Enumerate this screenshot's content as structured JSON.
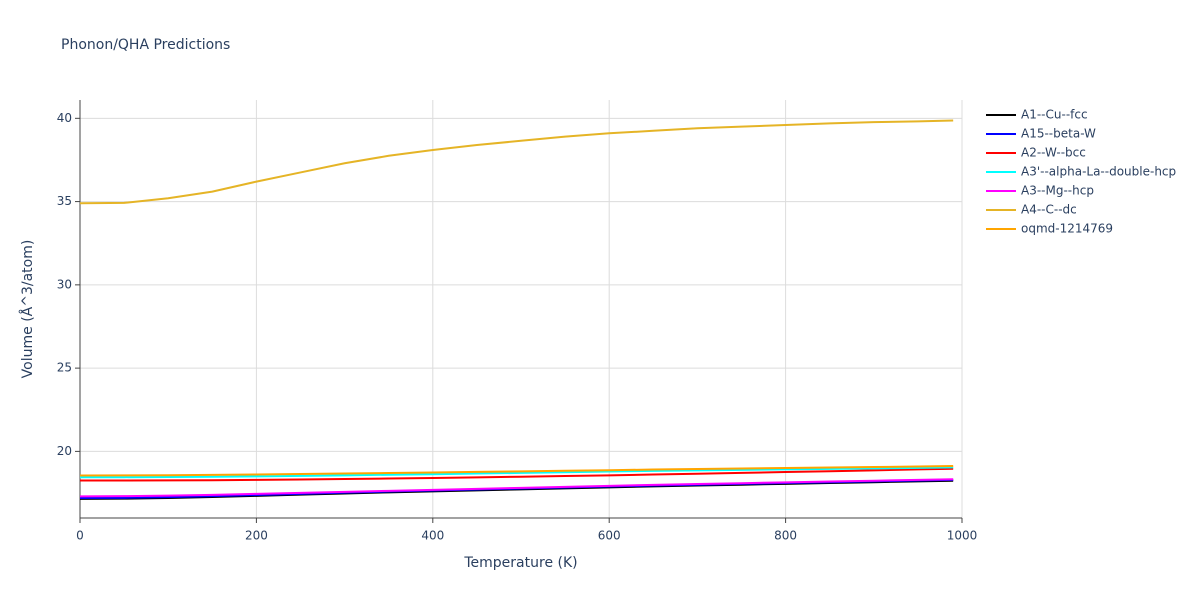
{
  "chart_data": {
    "type": "line",
    "title": "Phonon/QHA Predictions",
    "x_label": "Temperature (K)",
    "y_label": "Volume (Å^3/atom)",
    "x": [
      0,
      50,
      100,
      150,
      200,
      250,
      300,
      350,
      400,
      450,
      500,
      550,
      600,
      650,
      700,
      750,
      800,
      850,
      900,
      950,
      990
    ],
    "series": [
      {
        "name": "A1--Cu--fcc",
        "color": "#000000",
        "values": [
          17.15,
          17.16,
          17.2,
          17.26,
          17.33,
          17.4,
          17.47,
          17.54,
          17.6,
          17.66,
          17.72,
          17.78,
          17.84,
          17.9,
          17.95,
          18.0,
          18.05,
          18.1,
          18.15,
          18.2,
          18.24
        ]
      },
      {
        "name": "A15--beta-W",
        "color": "#0000ff",
        "values": [
          17.2,
          17.21,
          17.25,
          17.31,
          17.38,
          17.45,
          17.52,
          17.59,
          17.65,
          17.71,
          17.77,
          17.83,
          17.89,
          17.95,
          18.0,
          18.05,
          18.1,
          18.15,
          18.2,
          18.25,
          18.29
        ]
      },
      {
        "name": "A2--W--bcc",
        "color": "#ff0000",
        "values": [
          18.25,
          18.25,
          18.26,
          18.27,
          18.29,
          18.31,
          18.34,
          18.37,
          18.4,
          18.44,
          18.48,
          18.52,
          18.56,
          18.61,
          18.66,
          18.71,
          18.76,
          18.81,
          18.86,
          18.92,
          18.96
        ]
      },
      {
        "name": "A3'--alpha-La--double-hcp",
        "color": "#00ffff",
        "values": [
          18.45,
          18.45,
          18.46,
          18.48,
          18.5,
          18.53,
          18.56,
          18.6,
          18.63,
          18.67,
          18.71,
          18.75,
          18.79,
          18.83,
          18.86,
          18.89,
          18.92,
          18.95,
          18.98,
          19.01,
          19.04
        ]
      },
      {
        "name": "A3--Mg--hcp",
        "color": "#ff00ff",
        "values": [
          17.3,
          17.31,
          17.34,
          17.39,
          17.45,
          17.51,
          17.57,
          17.63,
          17.69,
          17.75,
          17.81,
          17.87,
          17.93,
          17.99,
          18.04,
          18.09,
          18.14,
          18.19,
          18.24,
          18.29,
          18.33
        ]
      },
      {
        "name": "A4--C--dc",
        "color": "#e5b426",
        "values": [
          34.9,
          34.92,
          35.2,
          35.6,
          36.2,
          36.75,
          37.3,
          37.75,
          38.1,
          38.4,
          38.65,
          38.9,
          39.1,
          39.25,
          39.4,
          39.5,
          39.6,
          39.7,
          39.77,
          39.82,
          39.87
        ]
      },
      {
        "name": "oqmd-1214769",
        "color": "#ffa500",
        "values": [
          18.55,
          18.56,
          18.57,
          18.59,
          18.61,
          18.64,
          18.67,
          18.7,
          18.73,
          18.77,
          18.8,
          18.84,
          18.87,
          18.91,
          18.94,
          18.97,
          19.0,
          19.03,
          19.06,
          19.09,
          19.12
        ]
      }
    ],
    "xlim": [
      0,
      1000
    ],
    "ylim": [
      16,
      41.1
    ],
    "xticks": [
      0,
      200,
      400,
      600,
      800,
      1000
    ],
    "yticks": [
      20,
      25,
      30,
      35,
      40
    ],
    "grid": true
  }
}
